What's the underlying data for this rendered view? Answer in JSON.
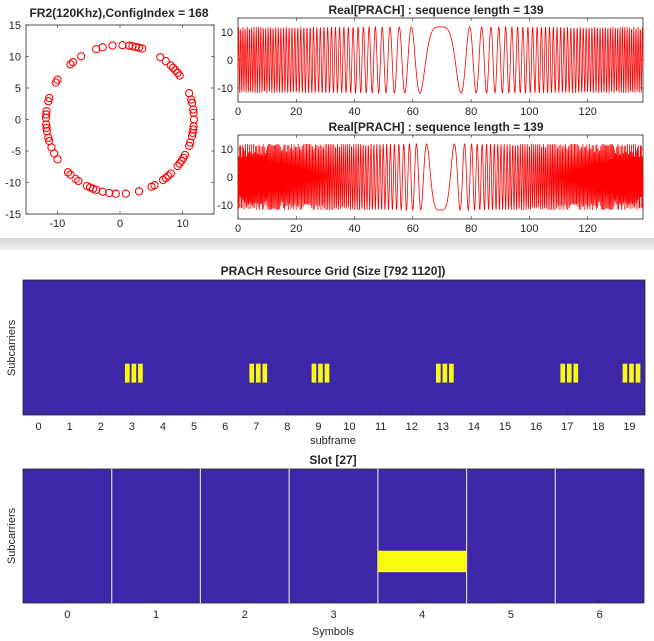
{
  "chart_data": [
    {
      "id": "constellation",
      "type": "scatter",
      "title": "FR2(120Khz),ConfigIndex = 168",
      "xlim": [
        -15,
        15
      ],
      "ylim": [
        -15,
        15
      ],
      "xticks": [
        "-10",
        "0",
        "10"
      ],
      "yticks": [
        "15",
        "10",
        "5",
        "0",
        "-5",
        "-10",
        "-15"
      ],
      "xtick_values": [
        -10,
        0,
        10
      ],
      "ytick_values": [
        15,
        10,
        5,
        0,
        -5,
        -10,
        -15
      ],
      "radius": 11.8,
      "points": 139,
      "marker": "circle",
      "color": "#ff0000"
    },
    {
      "id": "real-prach-1",
      "type": "line",
      "title": "Real[PRACH] : sequence length = 139",
      "xlim": [
        0,
        139
      ],
      "ylim": [
        -15,
        15
      ],
      "xticks": [
        "0",
        "20",
        "40",
        "60",
        "80",
        "100",
        "120"
      ],
      "yticks": [
        "10",
        "0",
        "-10"
      ],
      "xtick_values": [
        0,
        20,
        40,
        60,
        80,
        100,
        120
      ],
      "ytick_values": [
        10,
        0,
        -10
      ],
      "amplitude": 11.8,
      "chirp_center": 69.5,
      "chirp_rate": 0.01,
      "color": "#ff0000"
    },
    {
      "id": "real-prach-2",
      "type": "line",
      "title": "Real[PRACH] : sequence length = 139",
      "xlim": [
        0,
        139
      ],
      "ylim": [
        -15,
        15
      ],
      "xticks": [
        "0",
        "20",
        "40",
        "60",
        "80",
        "100",
        "120"
      ],
      "yticks": [
        "10",
        "0",
        "-10"
      ],
      "xtick_values": [
        0,
        20,
        40,
        60,
        80,
        100,
        120
      ],
      "ytick_values": [
        10,
        0,
        -10
      ],
      "amplitude": 11.8,
      "chirp_center": 69.5,
      "chirp_rate": 0.022,
      "color": "#ff0000"
    },
    {
      "id": "resource-grid",
      "type": "heatmap",
      "title": "PRACH Resource Grid (Size [792 1120])",
      "xlabel": "subframe",
      "ylabel": "Subcarriers",
      "xlim": [
        -0.5,
        19.5
      ],
      "xticks": [
        "0",
        "1",
        "2",
        "3",
        "4",
        "5",
        "6",
        "7",
        "8",
        "9",
        "10",
        "11",
        "12",
        "13",
        "14",
        "15",
        "16",
        "17",
        "18",
        "19"
      ],
      "xtick_values": [
        0,
        1,
        2,
        3,
        4,
        5,
        6,
        7,
        8,
        9,
        10,
        11,
        12,
        13,
        14,
        15,
        16,
        17,
        18,
        19
      ],
      "background_color": "#3d26a8",
      "highlight_color": "#f9fb0e",
      "prach_subframes": [
        3,
        7,
        9,
        13,
        17,
        19
      ],
      "slots_per_subframe": 3,
      "subcarrier_band": [
        0.62,
        0.76
      ]
    },
    {
      "id": "slot",
      "type": "heatmap",
      "title": "Slot [27]",
      "xlabel": "Symbols",
      "ylabel": "Subcarriers",
      "xlim": [
        -0.5,
        6.5
      ],
      "xticks": [
        "0",
        "1",
        "2",
        "3",
        "4",
        "5",
        "6"
      ],
      "xtick_values": [
        0,
        1,
        2,
        3,
        4,
        5,
        6
      ],
      "background_color": "#3d26a8",
      "highlight_color": "#f9fb0e",
      "gridline_color": "#d9d9d9",
      "highlight_symbol": 4,
      "subcarrier_band": [
        0.61,
        0.77
      ]
    }
  ]
}
